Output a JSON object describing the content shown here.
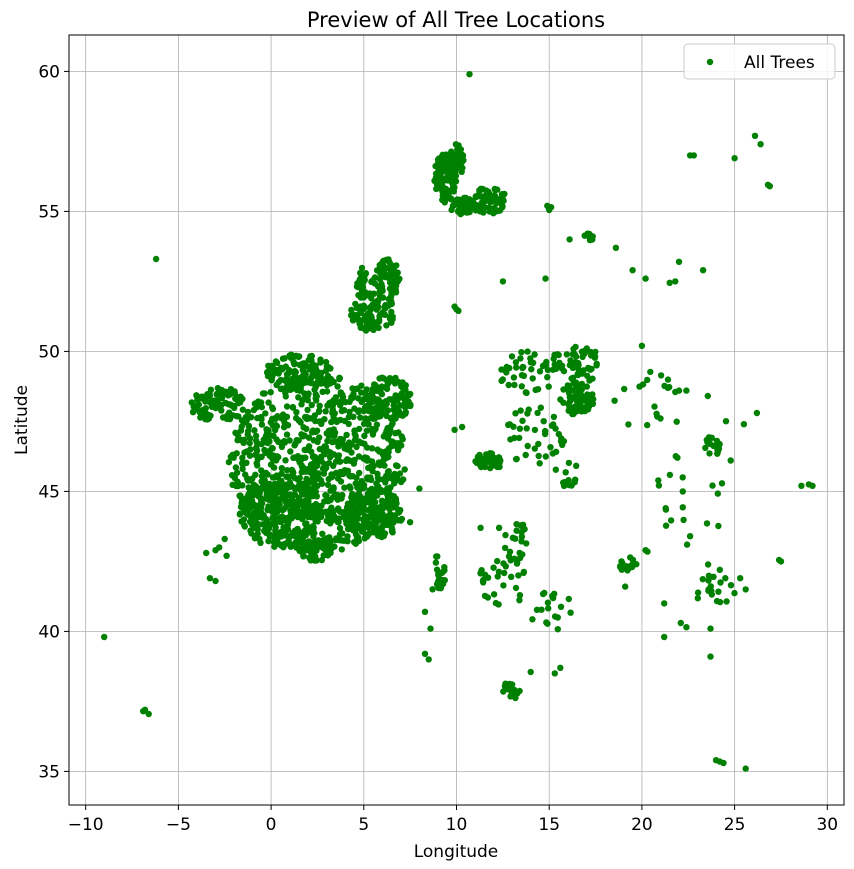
{
  "chart_data": {
    "type": "scatter",
    "title": "Preview of All Tree Locations",
    "xlabel": "Longitude",
    "ylabel": "Latitude",
    "xlim": [
      -10.9,
      30.9
    ],
    "ylim": [
      33.8,
      61.3
    ],
    "xticks": [
      -10,
      -5,
      0,
      5,
      10,
      15,
      20,
      25,
      30
    ],
    "xtick_labels": [
      "−10",
      "−5",
      "0",
      "5",
      "10",
      "15",
      "20",
      "25",
      "30"
    ],
    "yticks": [
      35,
      40,
      45,
      50,
      55,
      60
    ],
    "ytick_labels": [
      "35",
      "40",
      "45",
      "50",
      "55",
      "60"
    ],
    "grid": true,
    "legend_position": "top-right",
    "series": [
      {
        "name": "All Trees",
        "color": "#008000",
        "clusters": [
          {
            "cx": 2.5,
            "cy": 46.0,
            "rx": 4.8,
            "ry": 3.2,
            "n": 900
          },
          {
            "cx": 0.5,
            "cy": 44.3,
            "rx": 2.2,
            "ry": 1.3,
            "n": 200
          },
          {
            "cx": 5.5,
            "cy": 44.2,
            "rx": 1.6,
            "ry": 0.9,
            "n": 160
          },
          {
            "cx": 6.3,
            "cy": 48.3,
            "rx": 1.3,
            "ry": 0.8,
            "n": 120
          },
          {
            "cx": -2.8,
            "cy": 48.1,
            "rx": 1.6,
            "ry": 0.6,
            "n": 90
          },
          {
            "cx": 1.5,
            "cy": 49.3,
            "rx": 1.8,
            "ry": 0.6,
            "n": 100
          },
          {
            "cx": 2.5,
            "cy": 42.9,
            "rx": 1.0,
            "ry": 0.4,
            "n": 50
          },
          {
            "cx": 5.5,
            "cy": 51.4,
            "rx": 1.2,
            "ry": 0.7,
            "n": 90
          },
          {
            "cx": 6.2,
            "cy": 52.6,
            "rx": 0.8,
            "ry": 0.7,
            "n": 60
          },
          {
            "cx": 4.9,
            "cy": 52.4,
            "rx": 0.3,
            "ry": 0.6,
            "n": 25
          },
          {
            "cx": 9.4,
            "cy": 56.2,
            "rx": 0.6,
            "ry": 0.9,
            "n": 110
          },
          {
            "cx": 10.0,
            "cy": 56.8,
            "rx": 0.4,
            "ry": 0.6,
            "n": 50
          },
          {
            "cx": 11.7,
            "cy": 55.4,
            "rx": 1.0,
            "ry": 0.5,
            "n": 70
          },
          {
            "cx": 10.3,
            "cy": 55.2,
            "rx": 0.7,
            "ry": 0.3,
            "n": 40
          },
          {
            "cx": 16.5,
            "cy": 48.3,
            "rx": 0.9,
            "ry": 0.6,
            "n": 70
          },
          {
            "cx": 16.5,
            "cy": 49.5,
            "rx": 1.5,
            "ry": 0.7,
            "n": 50
          },
          {
            "cx": 13.8,
            "cy": 49.2,
            "rx": 1.5,
            "ry": 0.8,
            "n": 40
          },
          {
            "cx": 14.3,
            "cy": 47.0,
            "rx": 1.8,
            "ry": 1.1,
            "n": 40
          },
          {
            "cx": 11.8,
            "cy": 46.1,
            "rx": 0.8,
            "ry": 0.3,
            "n": 35
          },
          {
            "cx": 16.0,
            "cy": 45.6,
            "rx": 0.8,
            "ry": 0.5,
            "n": 12
          },
          {
            "cx": 9.0,
            "cy": 42.0,
            "rx": 0.4,
            "ry": 0.8,
            "n": 22
          },
          {
            "cx": 12.5,
            "cy": 41.8,
            "rx": 1.3,
            "ry": 1.0,
            "n": 30
          },
          {
            "cx": 13.2,
            "cy": 43.2,
            "rx": 0.6,
            "ry": 0.8,
            "n": 22
          },
          {
            "cx": 15.0,
            "cy": 40.8,
            "rx": 1.2,
            "ry": 0.8,
            "n": 18
          },
          {
            "cx": 13.0,
            "cy": 37.9,
            "rx": 0.6,
            "ry": 0.3,
            "n": 16
          },
          {
            "cx": 19.2,
            "cy": 42.4,
            "rx": 0.4,
            "ry": 0.3,
            "n": 18
          },
          {
            "cx": 23.8,
            "cy": 46.6,
            "rx": 0.4,
            "ry": 0.4,
            "n": 16
          },
          {
            "cx": 24.0,
            "cy": 41.5,
            "rx": 1.2,
            "ry": 0.6,
            "n": 18
          },
          {
            "cx": 17.2,
            "cy": 54.1,
            "rx": 0.3,
            "ry": 0.15,
            "n": 10
          },
          {
            "cx": 23.0,
            "cy": 45.5,
            "rx": 2.5,
            "ry": 3.5,
            "n": 25
          },
          {
            "cx": 20.0,
            "cy": 48.5,
            "rx": 1.5,
            "ry": 1.5,
            "n": 15
          }
        ],
        "points": [
          [
            -6.2,
            53.3
          ],
          [
            -9.0,
            39.8
          ],
          [
            -6.8,
            37.2
          ],
          [
            -6.6,
            37.05
          ],
          [
            -6.9,
            37.15
          ],
          [
            10.7,
            59.9
          ],
          [
            14.9,
            55.2
          ],
          [
            15.0,
            55.05
          ],
          [
            15.1,
            55.15
          ],
          [
            16.1,
            54.0
          ],
          [
            18.6,
            53.7
          ],
          [
            19.5,
            52.9
          ],
          [
            20.2,
            52.6
          ],
          [
            22.0,
            53.2
          ],
          [
            23.3,
            52.9
          ],
          [
            21.5,
            52.45
          ],
          [
            21.8,
            52.5
          ],
          [
            22.6,
            57.0
          ],
          [
            22.8,
            57.0
          ],
          [
            25.0,
            56.9
          ],
          [
            26.1,
            57.7
          ],
          [
            26.4,
            57.4
          ],
          [
            26.9,
            55.9
          ],
          [
            26.8,
            55.95
          ],
          [
            25.5,
            47.4
          ],
          [
            26.2,
            47.8
          ],
          [
            28.6,
            45.2
          ],
          [
            29.0,
            45.25
          ],
          [
            29.2,
            45.2
          ],
          [
            27.5,
            42.5
          ],
          [
            27.4,
            42.55
          ],
          [
            25.6,
            35.1
          ],
          [
            24.0,
            35.4
          ],
          [
            24.2,
            35.35
          ],
          [
            24.4,
            35.3
          ],
          [
            23.7,
            39.1
          ],
          [
            23.7,
            40.1
          ],
          [
            21.2,
            39.8
          ],
          [
            21.2,
            41.0
          ],
          [
            22.1,
            40.3
          ],
          [
            22.4,
            40.15
          ],
          [
            15.6,
            38.7
          ],
          [
            15.3,
            38.5
          ],
          [
            14.0,
            38.55
          ],
          [
            8.3,
            39.2
          ],
          [
            8.5,
            39.0
          ],
          [
            8.3,
            40.7
          ],
          [
            8.6,
            40.1
          ],
          [
            12.5,
            52.5
          ],
          [
            14.8,
            52.6
          ],
          [
            10.3,
            47.3
          ],
          [
            9.9,
            47.2
          ],
          [
            10.0,
            51.5
          ],
          [
            9.9,
            51.6
          ],
          [
            10.1,
            51.45
          ],
          [
            -3.5,
            42.8
          ],
          [
            -3.3,
            41.9
          ],
          [
            -3.0,
            41.8
          ],
          [
            -2.5,
            43.3
          ],
          [
            -2.8,
            43.0
          ],
          [
            -2.4,
            42.7
          ],
          [
            -3.0,
            42.9
          ],
          [
            8.0,
            45.1
          ],
          [
            7.5,
            43.9
          ],
          [
            12.3,
            43.7
          ],
          [
            11.3,
            43.7
          ],
          [
            20.3,
            42.85
          ],
          [
            20.2,
            42.9
          ],
          [
            22.0,
            48.6
          ],
          [
            21.8,
            48.55
          ],
          [
            22.4,
            48.6
          ],
          [
            21.4,
            48.7
          ],
          [
            20.0,
            50.2
          ],
          [
            22.6,
            43.4
          ],
          [
            22.2,
            45.5
          ],
          [
            24.5,
            41.9
          ],
          [
            24.2,
            42.2
          ],
          [
            25.6,
            41.5
          ],
          [
            25.3,
            41.9
          ],
          [
            19.1,
            41.6
          ],
          [
            18.9,
            42.5
          ],
          [
            19.7,
            42.4
          ]
        ]
      }
    ]
  }
}
